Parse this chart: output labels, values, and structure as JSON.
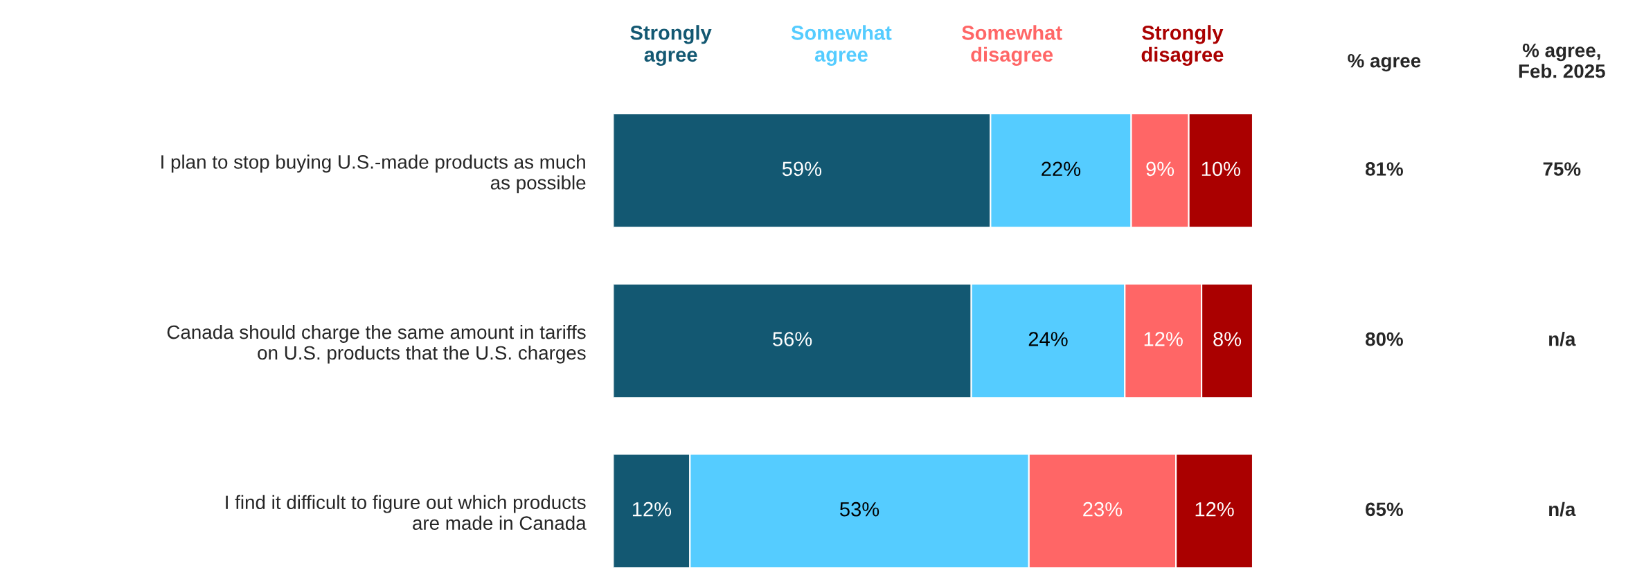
{
  "chart_data": {
    "type": "bar",
    "orientation": "horizontal",
    "stacked": true,
    "categories": [
      "I plan to stop buying U.S.-made products as much as possible",
      "Canada should charge the same amount in tariffs on U.S. products that the U.S. charges",
      "I find it difficult to figure out which products are made in Canada"
    ],
    "series": [
      {
        "name": "Strongly agree",
        "color": "#135872",
        "values": [
          59,
          56,
          12
        ],
        "value_labels": [
          "59%",
          "56%",
          "12%"
        ]
      },
      {
        "name": "Somewhat agree",
        "color": "#55ccff",
        "values": [
          22,
          24,
          53
        ],
        "value_labels": [
          "22%",
          "24%",
          "53%"
        ]
      },
      {
        "name": "Somewhat disagree",
        "color": "#ff6666",
        "values": [
          9,
          12,
          23
        ],
        "value_labels": [
          "9%",
          "12%",
          "23%"
        ]
      },
      {
        "name": "Strongly disagree",
        "color": "#aa0000",
        "values": [
          10,
          8,
          12
        ],
        "value_labels": [
          "10%",
          "8%",
          "12%"
        ]
      }
    ],
    "tick_labels": "y",
    "legend": "top",
    "annotations": [
      "% agree",
      "% agree,\nFeb. 2025",
      "81%",
      "75%",
      "80%",
      "n/a",
      "65%",
      "n/a"
    ]
  }
}
